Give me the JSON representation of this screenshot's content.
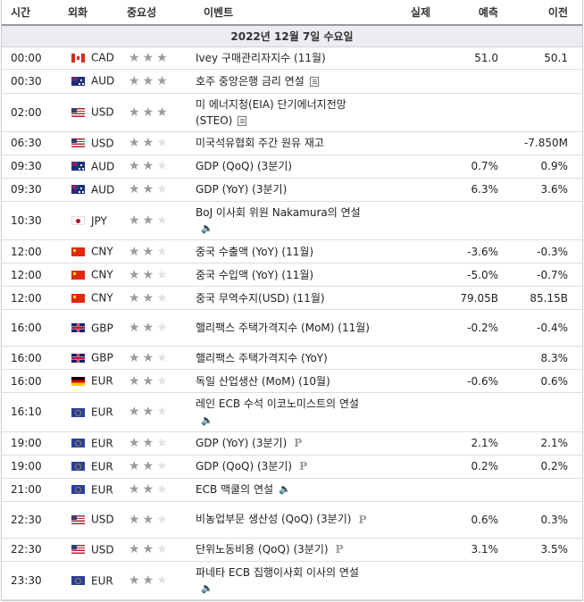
{
  "headers": {
    "time": "시간",
    "currency": "외화",
    "importance": "중요성",
    "event": "이벤트",
    "actual": "실제",
    "forecast": "예측",
    "previous": "이전"
  },
  "date_label": "2022년 12월 7일 수요일",
  "rows": [
    {
      "time": "00:00",
      "flag": "ca",
      "currency": "CAD",
      "stars": 3,
      "event": "Ivey 구매관리자지수 (11월)",
      "icon": "",
      "actual": "",
      "forecast": "51.0",
      "previous": "50.1"
    },
    {
      "time": "00:30",
      "flag": "au",
      "currency": "AUD",
      "stars": 3,
      "event": "호주 중앙은행 금리 연설",
      "icon": "document-icon",
      "actual": "",
      "forecast": "",
      "previous": ""
    },
    {
      "time": "02:00",
      "flag": "us",
      "currency": "USD",
      "stars": 3,
      "event": "미 에너지청(EIA) 단기에너지전망(STEO)",
      "icon": "document-icon",
      "actual": "",
      "forecast": "",
      "previous": ""
    },
    {
      "time": "06:30",
      "flag": "us",
      "currency": "USD",
      "stars": 2,
      "event": "미국석유협회 주간 원유 재고",
      "icon": "",
      "actual": "",
      "forecast": "",
      "previous": "-7.850M"
    },
    {
      "time": "09:30",
      "flag": "au",
      "currency": "AUD",
      "stars": 2,
      "event": "GDP (QoQ) (3분기)",
      "icon": "",
      "actual": "",
      "forecast": "0.7%",
      "previous": "0.9%"
    },
    {
      "time": "09:30",
      "flag": "au",
      "currency": "AUD",
      "stars": 2,
      "event": "GDP (YoY) (3분기)",
      "icon": "",
      "actual": "",
      "forecast": "6.3%",
      "previous": "3.6%"
    },
    {
      "time": "10:30",
      "flag": "jp",
      "currency": "JPY",
      "stars": 2,
      "event": "BoJ 이사회 위원 Nakamura의 연설",
      "icon": "speaker-icon",
      "actual": "",
      "forecast": "",
      "previous": ""
    },
    {
      "time": "12:00",
      "flag": "cn",
      "currency": "CNY",
      "stars": 2,
      "event": "중국 수출액 (YoY) (11월)",
      "icon": "",
      "actual": "",
      "forecast": "-3.6%",
      "previous": "-0.3%"
    },
    {
      "time": "12:00",
      "flag": "cn",
      "currency": "CNY",
      "stars": 2,
      "event": "중국 수입액 (YoY) (11월)",
      "icon": "",
      "actual": "",
      "forecast": "-5.0%",
      "previous": "-0.7%"
    },
    {
      "time": "12:00",
      "flag": "cn",
      "currency": "CNY",
      "stars": 2,
      "event": "중국 무역수지(USD) (11월)",
      "icon": "",
      "actual": "",
      "forecast": "79.05B",
      "previous": "85.15B"
    },
    {
      "time": "16:00",
      "flag": "gb",
      "currency": "GBP",
      "stars": 2,
      "event": "핼리팩스 주택가격지수 (MoM) (11월)",
      "icon": "",
      "actual": "",
      "forecast": "-0.2%",
      "previous": "-0.4%"
    },
    {
      "time": "16:00",
      "flag": "gb",
      "currency": "GBP",
      "stars": 2,
      "event": "핼리팩스 주택가격지수 (YoY)",
      "icon": "",
      "actual": "",
      "forecast": "",
      "previous": "8.3%"
    },
    {
      "time": "16:00",
      "flag": "de",
      "currency": "EUR",
      "stars": 2,
      "event": "독일 산업생산 (MoM) (10월)",
      "icon": "",
      "actual": "",
      "forecast": "-0.6%",
      "previous": "0.6%"
    },
    {
      "time": "16:10",
      "flag": "eu",
      "currency": "EUR",
      "stars": 2,
      "event": "레인 ECB 수석 이코노미스트의 연설",
      "icon": "speaker-icon",
      "actual": "",
      "forecast": "",
      "previous": ""
    },
    {
      "time": "19:00",
      "flag": "eu",
      "currency": "EUR",
      "stars": 2,
      "event": "GDP (YoY) (3분기)",
      "icon": "preliminary-icon",
      "actual": "",
      "forecast": "2.1%",
      "previous": "2.1%"
    },
    {
      "time": "19:00",
      "flag": "eu",
      "currency": "EUR",
      "stars": 2,
      "event": "GDP (QoQ) (3분기)",
      "icon": "preliminary-icon",
      "actual": "",
      "forecast": "0.2%",
      "previous": "0.2%"
    },
    {
      "time": "21:00",
      "flag": "eu",
      "currency": "EUR",
      "stars": 2,
      "event": "ECB 맥쿨의 연설",
      "icon": "speaker-icon",
      "actual": "",
      "forecast": "",
      "previous": ""
    },
    {
      "time": "22:30",
      "flag": "us",
      "currency": "USD",
      "stars": 2,
      "event": "비농업부문 생산성 (QoQ) (3분기)",
      "icon": "preliminary-icon",
      "actual": "",
      "forecast": "0.6%",
      "previous": "0.3%"
    },
    {
      "time": "22:30",
      "flag": "us",
      "currency": "USD",
      "stars": 2,
      "event": "단위노동비용 (QoQ) (3분기)",
      "icon": "preliminary-icon",
      "actual": "",
      "forecast": "3.1%",
      "previous": "3.5%"
    },
    {
      "time": "23:30",
      "flag": "eu",
      "currency": "EUR",
      "stars": 2,
      "event": "파네타 ECB 집행이사회 이사의 연설",
      "icon": "speaker-icon",
      "actual": "",
      "forecast": "",
      "previous": ""
    }
  ]
}
